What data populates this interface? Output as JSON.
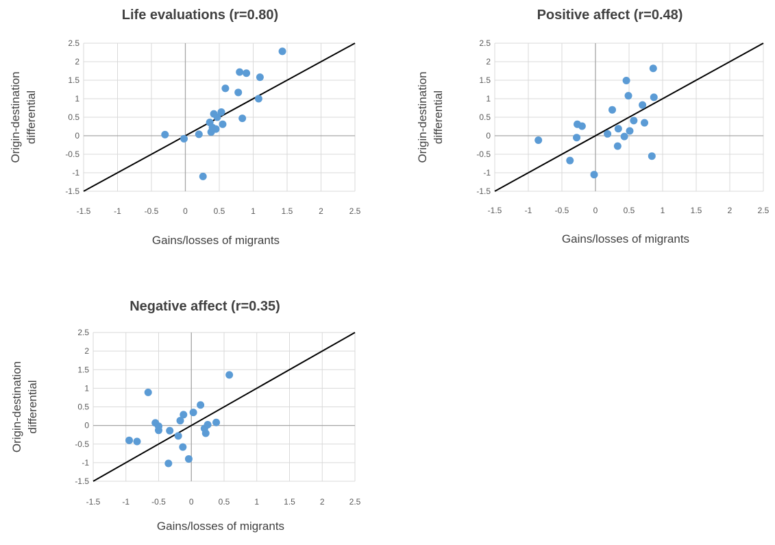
{
  "chart_data": [
    {
      "type": "scatter",
      "title": "Life evaluations (r=0.80)",
      "xlabel": "Gains/losses of migrants",
      "ylabel_lines": [
        "Origin-destination",
        "differential"
      ],
      "xlim": [
        -1.5,
        2.5
      ],
      "ylim": [
        -1.5,
        2.5
      ],
      "xticks": [
        -1.5,
        -1,
        -0.5,
        0,
        0.5,
        1,
        1.5,
        2,
        2.5
      ],
      "yticks": [
        -1.5,
        -1,
        -0.5,
        0,
        0.5,
        1,
        1.5,
        2,
        2.5
      ],
      "grid": true,
      "reference_line": [
        [
          -1.5,
          -1.5
        ],
        [
          2.5,
          2.5
        ]
      ],
      "marker_color": "#5B9BD5",
      "line_color": "#000000",
      "points": [
        [
          -0.3,
          0.03
        ],
        [
          -0.02,
          -0.08
        ],
        [
          0.2,
          0.04
        ],
        [
          0.26,
          -1.1
        ],
        [
          0.36,
          0.36
        ],
        [
          0.38,
          0.1
        ],
        [
          0.4,
          0.22
        ],
        [
          0.42,
          0.59
        ],
        [
          0.45,
          0.18
        ],
        [
          0.47,
          0.5
        ],
        [
          0.53,
          0.64
        ],
        [
          0.55,
          0.31
        ],
        [
          0.59,
          1.28
        ],
        [
          0.78,
          1.17
        ],
        [
          0.8,
          1.72
        ],
        [
          0.84,
          0.47
        ],
        [
          0.9,
          1.69
        ],
        [
          1.08,
          1.0
        ],
        [
          1.1,
          1.58
        ],
        [
          1.43,
          2.28
        ]
      ]
    },
    {
      "type": "scatter",
      "title": "Positive affect (r=0.48)",
      "xlabel": "Gains/losses of migrants",
      "ylabel_lines": [
        "Origin-destination",
        "differential"
      ],
      "xlim": [
        -1.5,
        2.5
      ],
      "ylim": [
        -1.5,
        2.5
      ],
      "xticks": [
        -1.5,
        -1,
        -0.5,
        0,
        0.5,
        1,
        1.5,
        2,
        2.5
      ],
      "yticks": [
        -1.5,
        -1,
        -0.5,
        0,
        0.5,
        1,
        1.5,
        2,
        2.5
      ],
      "grid": true,
      "reference_line": [
        [
          -1.5,
          -1.5
        ],
        [
          2.5,
          2.5
        ]
      ],
      "marker_color": "#5B9BD5",
      "line_color": "#000000",
      "points": [
        [
          -0.85,
          -0.12
        ],
        [
          -0.38,
          -0.67
        ],
        [
          -0.28,
          -0.05
        ],
        [
          -0.27,
          0.31
        ],
        [
          -0.2,
          0.26
        ],
        [
          -0.02,
          -1.05
        ],
        [
          0.18,
          0.05
        ],
        [
          0.25,
          0.7
        ],
        [
          0.33,
          -0.28
        ],
        [
          0.34,
          0.19
        ],
        [
          0.43,
          -0.02
        ],
        [
          0.46,
          1.49
        ],
        [
          0.49,
          1.08
        ],
        [
          0.51,
          0.13
        ],
        [
          0.57,
          0.41
        ],
        [
          0.7,
          0.83
        ],
        [
          0.73,
          0.35
        ],
        [
          0.84,
          -0.55
        ],
        [
          0.86,
          1.82
        ],
        [
          0.87,
          1.04
        ]
      ]
    },
    {
      "type": "scatter",
      "title": "Negative affect (r=0.35)",
      "xlabel": "Gains/losses of migrants",
      "ylabel_lines": [
        "Origin-destination",
        "differential"
      ],
      "xlim": [
        -1.5,
        2.5
      ],
      "ylim": [
        -1.5,
        2.5
      ],
      "xticks": [
        -1.5,
        -1,
        -0.5,
        0,
        0.5,
        1,
        1.5,
        2,
        2.5
      ],
      "yticks": [
        -1.5,
        -1,
        -0.5,
        0,
        0.5,
        1,
        1.5,
        2,
        2.5
      ],
      "grid": true,
      "reference_line": [
        [
          -1.5,
          -1.5
        ],
        [
          2.5,
          2.5
        ]
      ],
      "marker_color": "#5B9BD5",
      "line_color": "#000000",
      "points": [
        [
          -0.95,
          -0.4
        ],
        [
          -0.83,
          -0.43
        ],
        [
          -0.66,
          0.89
        ],
        [
          -0.55,
          0.07
        ],
        [
          -0.5,
          -0.13
        ],
        [
          -0.5,
          -0.02
        ],
        [
          -0.33,
          -0.14
        ],
        [
          -0.35,
          -1.02
        ],
        [
          -0.2,
          -0.28
        ],
        [
          -0.17,
          0.13
        ],
        [
          -0.12,
          0.29
        ],
        [
          -0.13,
          -0.58
        ],
        [
          -0.04,
          -0.9
        ],
        [
          0.03,
          0.35
        ],
        [
          0.14,
          0.55
        ],
        [
          0.2,
          -0.08
        ],
        [
          0.22,
          -0.21
        ],
        [
          0.25,
          0.02
        ],
        [
          0.38,
          0.08
        ],
        [
          0.58,
          1.36
        ]
      ]
    }
  ]
}
